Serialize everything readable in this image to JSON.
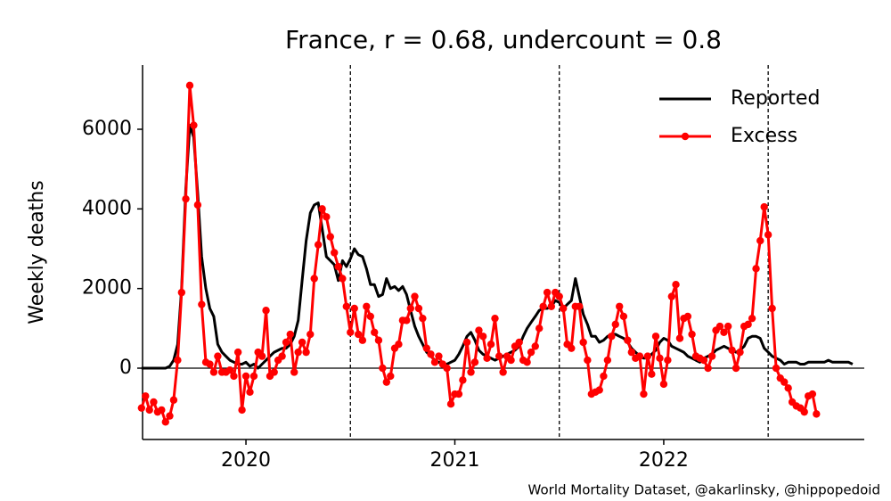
{
  "chart_data": {
    "type": "line",
    "title": "France, r = 0.68, undercount = 0.8",
    "y_label": "Weekly deaths",
    "source": "World Mortality Dataset, @akarlinsky, @hippopedoid",
    "xlim": [
      2019.505,
      2022.96
    ],
    "xticks": [
      2020,
      2021,
      2022
    ],
    "ylim": [
      -1791,
      7612
    ],
    "yticks": [
      0,
      2000,
      4000,
      6000
    ],
    "vlines": [
      2020.5,
      2021.5,
      2022.5
    ],
    "hline": 0,
    "legend": "upper right",
    "grid": false,
    "x": [
      2019.5,
      2019.519,
      2019.538,
      2019.558,
      2019.577,
      2019.596,
      2019.615,
      2019.635,
      2019.654,
      2019.673,
      2019.692,
      2019.712,
      2019.731,
      2019.75,
      2019.769,
      2019.788,
      2019.808,
      2019.827,
      2019.846,
      2019.865,
      2019.885,
      2019.904,
      2019.923,
      2019.942,
      2019.962,
      2019.981,
      2020,
      2020.019,
      2020.038,
      2020.058,
      2020.077,
      2020.096,
      2020.115,
      2020.135,
      2020.154,
      2020.173,
      2020.192,
      2020.212,
      2020.231,
      2020.25,
      2020.269,
      2020.288,
      2020.308,
      2020.327,
      2020.346,
      2020.365,
      2020.385,
      2020.404,
      2020.423,
      2020.442,
      2020.462,
      2020.481,
      2020.5,
      2020.519,
      2020.538,
      2020.558,
      2020.577,
      2020.596,
      2020.615,
      2020.635,
      2020.654,
      2020.673,
      2020.692,
      2020.712,
      2020.731,
      2020.75,
      2020.769,
      2020.788,
      2020.808,
      2020.827,
      2020.846,
      2020.865,
      2020.885,
      2020.904,
      2020.923,
      2020.942,
      2020.962,
      2020.981,
      2021,
      2021.019,
      2021.038,
      2021.058,
      2021.077,
      2021.096,
      2021.115,
      2021.135,
      2021.154,
      2021.173,
      2021.192,
      2021.212,
      2021.231,
      2021.25,
      2021.269,
      2021.288,
      2021.308,
      2021.327,
      2021.346,
      2021.365,
      2021.385,
      2021.404,
      2021.423,
      2021.442,
      2021.462,
      2021.481,
      2021.5,
      2021.519,
      2021.538,
      2021.558,
      2021.577,
      2021.596,
      2021.615,
      2021.635,
      2021.654,
      2021.673,
      2021.692,
      2021.712,
      2021.731,
      2021.75,
      2021.769,
      2021.788,
      2021.808,
      2021.827,
      2021.846,
      2021.865,
      2021.885,
      2021.904,
      2021.923,
      2021.942,
      2021.962,
      2021.981,
      2022,
      2022.019,
      2022.038,
      2022.058,
      2022.077,
      2022.096,
      2022.115,
      2022.135,
      2022.154,
      2022.173,
      2022.192,
      2022.212,
      2022.231,
      2022.25,
      2022.269,
      2022.288,
      2022.308,
      2022.327,
      2022.346,
      2022.365,
      2022.385,
      2022.404,
      2022.423,
      2022.442,
      2022.462,
      2022.481,
      2022.5,
      2022.519,
      2022.538,
      2022.558,
      2022.577,
      2022.596,
      2022.615,
      2022.635,
      2022.654,
      2022.673,
      2022.692,
      2022.712,
      2022.731,
      2022.75,
      2022.769,
      2022.788,
      2022.808,
      2022.827,
      2022.846,
      2022.865,
      2022.885,
      2022.904
    ],
    "series": [
      {
        "name": "Reported",
        "color": "#000000",
        "marker": false,
        "values": [
          0,
          0,
          0,
          0,
          0,
          0,
          0,
          50,
          200,
          600,
          2000,
          4500,
          6100,
          5800,
          4400,
          2800,
          2000,
          1500,
          1300,
          600,
          400,
          300,
          200,
          150,
          100,
          100,
          150,
          50,
          100,
          0,
          100,
          200,
          300,
          400,
          450,
          500,
          500,
          600,
          800,
          1200,
          2200,
          3200,
          3900,
          4100,
          4150,
          3500,
          2800,
          2700,
          2600,
          2200,
          2700,
          2550,
          2750,
          3000,
          2850,
          2800,
          2500,
          2100,
          2100,
          1800,
          1850,
          2250,
          2000,
          2050,
          1950,
          2050,
          1850,
          1450,
          1050,
          800,
          600,
          400,
          300,
          200,
          150,
          100,
          100,
          150,
          200,
          350,
          550,
          800,
          900,
          700,
          450,
          350,
          300,
          250,
          200,
          250,
          300,
          350,
          400,
          450,
          550,
          800,
          1000,
          1150,
          1300,
          1450,
          1500,
          1500,
          1550,
          1700,
          1650,
          1500,
          1600,
          1700,
          2250,
          1800,
          1350,
          1100,
          800,
          800,
          650,
          700,
          800,
          850,
          850,
          800,
          750,
          650,
          500,
          400,
          300,
          250,
          250,
          350,
          450,
          650,
          750,
          700,
          550,
          500,
          450,
          400,
          300,
          250,
          200,
          150,
          250,
          300,
          350,
          450,
          500,
          550,
          500,
          450,
          400,
          450,
          550,
          750,
          800,
          800,
          750,
          500,
          400,
          300,
          250,
          200,
          100,
          150,
          150,
          150,
          100,
          100,
          150,
          150,
          150,
          150,
          150,
          200,
          150,
          150,
          150,
          150,
          150,
          100
        ]
      },
      {
        "name": "Excess",
        "color": "#ff0000",
        "marker": true,
        "values": [
          -1000,
          -700,
          -1050,
          -850,
          -1100,
          -1050,
          -1350,
          -1200,
          -800,
          200,
          1900,
          4250,
          7100,
          6100,
          4100,
          1600,
          150,
          100,
          -100,
          300,
          -100,
          -100,
          -50,
          -200,
          400,
          -1050,
          -200,
          -600,
          -200,
          400,
          300,
          1450,
          -200,
          -100,
          200,
          300,
          650,
          850,
          -100,
          400,
          650,
          400,
          850,
          2250,
          3100,
          4000,
          3800,
          3300,
          2900,
          2550,
          2250,
          1550,
          900,
          1500,
          850,
          700,
          1550,
          1300,
          900,
          700,
          0,
          -350,
          -200,
          500,
          600,
          1200,
          1200,
          1500,
          1800,
          1500,
          1250,
          500,
          350,
          150,
          300,
          100,
          0,
          -900,
          -650,
          -650,
          -300,
          650,
          -100,
          150,
          950,
          800,
          250,
          600,
          1250,
          300,
          -100,
          300,
          200,
          550,
          650,
          200,
          150,
          400,
          550,
          1000,
          1550,
          1900,
          1550,
          1900,
          1800,
          1500,
          600,
          500,
          1550,
          1550,
          650,
          200,
          -650,
          -600,
          -550,
          -200,
          200,
          800,
          1100,
          1550,
          1300,
          700,
          400,
          250,
          300,
          -650,
          300,
          -150,
          800,
          250,
          -400,
          200,
          1800,
          2100,
          750,
          1250,
          1300,
          850,
          300,
          250,
          200,
          0,
          300,
          950,
          1050,
          900,
          1050,
          450,
          0,
          400,
          1050,
          1100,
          1250,
          2500,
          3200,
          4050,
          3350,
          1500,
          0,
          -250,
          -350,
          -500,
          -850,
          -950,
          -1000,
          -1100,
          -700,
          -650,
          -1150,
          null,
          null,
          null,
          null,
          null,
          null,
          null,
          null,
          null
        ]
      }
    ]
  }
}
